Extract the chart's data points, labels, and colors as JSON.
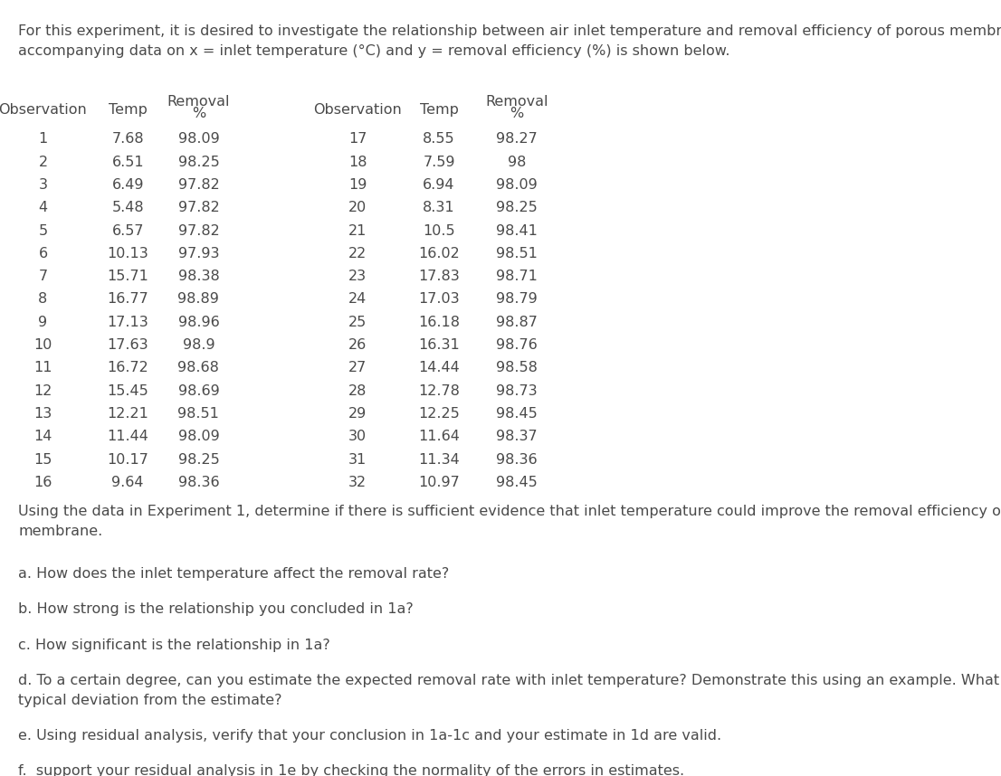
{
  "intro_text": "For this experiment, it is desired to investigate the relationship between air inlet temperature and removal efficiency of porous membrane. The\naccompanying data on x = inlet temperature (°C) and y = removal efficiency (%) is shown below.",
  "header_left": [
    "Observation",
    "Temp",
    "Removal\n%"
  ],
  "header_right": [
    "Observation",
    "Temp",
    "Removal\n%"
  ],
  "table_data": [
    [
      1,
      7.68,
      98.09,
      17,
      8.55,
      98.27
    ],
    [
      2,
      6.51,
      98.25,
      18,
      7.59,
      98.0
    ],
    [
      3,
      6.49,
      97.82,
      19,
      6.94,
      98.09
    ],
    [
      4,
      5.48,
      97.82,
      20,
      8.31,
      98.25
    ],
    [
      5,
      6.57,
      97.82,
      21,
      10.5,
      98.41
    ],
    [
      6,
      10.13,
      97.93,
      22,
      16.02,
      98.51
    ],
    [
      7,
      15.71,
      98.38,
      23,
      17.83,
      98.71
    ],
    [
      8,
      16.77,
      98.89,
      24,
      17.03,
      98.79
    ],
    [
      9,
      17.13,
      98.96,
      25,
      16.18,
      98.87
    ],
    [
      10,
      17.63,
      98.9,
      26,
      16.31,
      98.76
    ],
    [
      11,
      16.72,
      98.68,
      27,
      14.44,
      98.58
    ],
    [
      12,
      15.45,
      98.69,
      28,
      12.78,
      98.73
    ],
    [
      13,
      12.21,
      98.51,
      29,
      12.25,
      98.45
    ],
    [
      14,
      11.44,
      98.09,
      30,
      11.64,
      98.37
    ],
    [
      15,
      10.17,
      98.25,
      31,
      11.34,
      98.36
    ],
    [
      16,
      9.64,
      98.36,
      32,
      10.97,
      98.45
    ]
  ],
  "question_text": "Using the data in Experiment 1, determine if there is sufficient evidence that inlet temperature could improve the removal efficiency of the\nmembrane.",
  "questions": [
    "a. How does the inlet temperature affect the removal rate?",
    "b. How strong is the relationship you concluded in 1a?",
    "c. How significant is the relationship in 1a?",
    "d. To a certain degree, can you estimate the expected removal rate with inlet temperature? Demonstrate this using an example. What is the\ntypical deviation from the estimate?",
    "e. Using residual analysis, verify that your conclusion in 1a-1c and your estimate in 1d are valid.",
    "f.  support your residual analysis in 1e by checking the normality of the errors in estimates."
  ],
  "bg_color": "#ffffff",
  "text_color": "#4a4a4a",
  "font_size_body": 11.5,
  "font_size_table": 11.5
}
